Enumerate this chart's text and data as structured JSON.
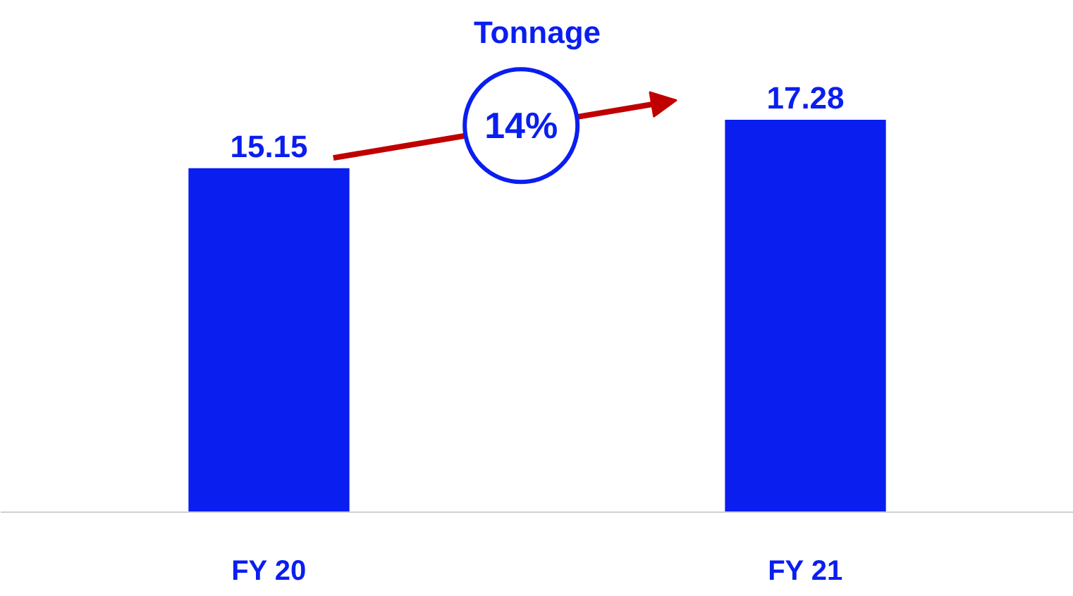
{
  "chart_data": {
    "type": "bar",
    "title": "Tonnage",
    "categories": [
      "FY 20",
      "FY 21"
    ],
    "values": [
      15.15,
      17.28
    ],
    "color": "#0a1ef0",
    "data_labels": true,
    "tick_labels": "x",
    "grid": false,
    "annotations": [
      "14%"
    ]
  }
}
